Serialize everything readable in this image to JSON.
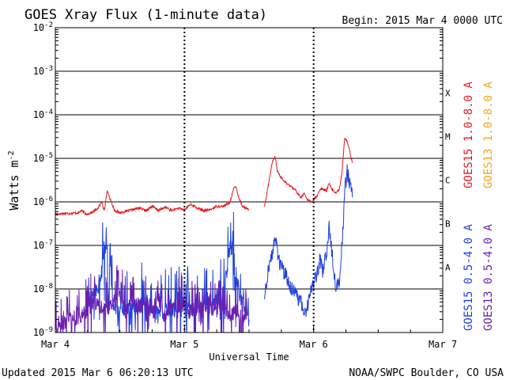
{
  "header": {
    "title": "GOES Xray Flux (1-minute data)",
    "begin": "Begin:  2015 Mar 4 0000 UTC"
  },
  "footer": {
    "updated": "Updated 2015 Mar  6 06:20:13 UTC",
    "credit": "NOAA/SWPC Boulder, CO USA"
  },
  "chart_data": {
    "type": "line",
    "title": "GOES Xray Flux (1-minute data)",
    "xlabel": "Universal Time",
    "ylabel_base": "Watts m",
    "ylabel_sup": "-2",
    "y_scale": "log",
    "ylim": [
      1e-09,
      0.01
    ],
    "xlim": [
      0,
      3
    ],
    "x_unit": "days since 2015 Mar 4 0000 UTC",
    "x_ticks": [
      {
        "value": 0,
        "label": "Mar 4"
      },
      {
        "value": 1,
        "label": "Mar 5"
      },
      {
        "value": 2,
        "label": "Mar 6"
      },
      {
        "value": 3,
        "label": "Mar 7"
      }
    ],
    "y_ticks": [
      {
        "exp": -9,
        "base": "10",
        "sup": "-9"
      },
      {
        "exp": -8,
        "base": "10",
        "sup": "-8"
      },
      {
        "exp": -7,
        "base": "10",
        "sup": "-7"
      },
      {
        "exp": -6,
        "base": "10",
        "sup": "-6"
      },
      {
        "exp": -5,
        "base": "10",
        "sup": "-5"
      },
      {
        "exp": -4,
        "base": "10",
        "sup": "-4"
      },
      {
        "exp": -3,
        "base": "10",
        "sup": "-3"
      },
      {
        "exp": -2,
        "base": "10",
        "sup": "-2"
      }
    ],
    "flare_classes": [
      {
        "label": "A",
        "log_center": -7.5
      },
      {
        "label": "B",
        "log_center": -6.5
      },
      {
        "label": "C",
        "log_center": -5.5
      },
      {
        "label": "M",
        "log_center": -4.5
      },
      {
        "label": "X",
        "log_center": -3.5
      }
    ],
    "gridlines_log": [
      -8,
      -7,
      -6,
      -5,
      -4,
      -3
    ],
    "grid": true,
    "legend_placement": "right",
    "series": [
      {
        "name": "GOES15 1.0-8.0 A",
        "color": "#e41a1c",
        "style": "noisy",
        "noise": 0.03,
        "x": [
          0,
          0.18,
          0.2,
          0.24,
          0.28,
          0.33,
          0.36,
          0.38,
          0.4,
          0.42,
          0.46,
          0.5,
          0.6,
          0.65,
          0.7,
          0.75,
          0.8,
          0.85,
          0.9,
          0.95,
          1.0,
          1.05,
          1.1,
          1.15,
          1.2,
          1.25,
          1.3,
          1.35,
          1.38,
          1.4,
          1.42,
          1.45,
          1.5
        ],
        "log": [
          -6.28,
          -6.25,
          -6.2,
          -6.28,
          -6.25,
          -6.15,
          -6.0,
          -6.2,
          -5.75,
          -5.9,
          -6.2,
          -6.25,
          -6.18,
          -6.14,
          -6.2,
          -6.1,
          -6.2,
          -6.12,
          -6.2,
          -6.15,
          -6.18,
          -6.05,
          -6.15,
          -6.2,
          -6.18,
          -6.1,
          -6.1,
          -6.02,
          -5.7,
          -5.65,
          -5.9,
          -6.1,
          -6.18
        ]
      },
      {
        "name": "GOES15 1.0-8.0 A",
        "color": "#e41a1c",
        "style": "noisy",
        "noise": 0.03,
        "x": [
          1.62,
          1.65,
          1.68,
          1.7,
          1.72,
          1.75,
          1.8,
          1.85,
          1.9,
          1.93,
          1.95,
          1.98,
          2.0,
          2.03,
          2.05,
          2.07,
          2.1,
          2.12,
          2.14,
          2.17,
          2.2,
          2.22,
          2.24,
          2.26,
          2.28,
          2.3
        ],
        "log": [
          -6.1,
          -5.6,
          -5.1,
          -4.95,
          -5.3,
          -5.45,
          -5.6,
          -5.7,
          -5.9,
          -5.8,
          -5.95,
          -6.0,
          -5.95,
          -5.85,
          -5.7,
          -5.7,
          -5.75,
          -5.55,
          -5.7,
          -5.8,
          -5.7,
          -5.3,
          -4.55,
          -4.6,
          -4.85,
          -5.1
        ]
      },
      {
        "name": "GOES15 0.5-4.0 A",
        "color": "#1f3fe0",
        "style": "spiky",
        "noise": 0.35,
        "x": [
          0.25,
          0.3,
          0.35,
          0.38,
          0.4,
          0.42,
          0.45,
          0.5,
          0.6,
          0.7,
          0.8,
          0.9,
          1.0,
          1.1,
          1.2,
          1.3,
          1.32,
          1.35,
          1.38,
          1.4,
          1.42,
          1.44,
          1.46,
          1.48,
          1.5
        ],
        "log": [
          -8.3,
          -8.1,
          -7.8,
          -7.0,
          -7.1,
          -7.6,
          -8.3,
          -8.5,
          -8.4,
          -8.3,
          -8.6,
          -8.4,
          -8.5,
          -8.4,
          -8.3,
          -8.2,
          -7.7,
          -7.0,
          -7.2,
          -7.8,
          -8.0,
          -8.3,
          -8.4,
          -8.6,
          -8.7
        ]
      },
      {
        "name": "GOES15 0.5-4.0 A",
        "color": "#1f3fe0",
        "style": "noisy",
        "noise": 0.18,
        "x": [
          1.62,
          1.65,
          1.68,
          1.7,
          1.72,
          1.75,
          1.8,
          1.85,
          1.9,
          1.93,
          1.95,
          1.98,
          2.0,
          2.03,
          2.05,
          2.07,
          2.1,
          2.12,
          2.14,
          2.17,
          2.2,
          2.22,
          2.24,
          2.26,
          2.28,
          2.3
        ],
        "log": [
          -8.2,
          -7.5,
          -7.2,
          -6.75,
          -7.2,
          -7.5,
          -7.8,
          -8.1,
          -8.3,
          -8.6,
          -8.4,
          -8.0,
          -7.9,
          -7.6,
          -7.3,
          -7.6,
          -7.2,
          -6.6,
          -7.1,
          -7.9,
          -7.8,
          -7.0,
          -5.8,
          -5.3,
          -5.6,
          -5.9
        ]
      },
      {
        "name": "GOES13 1.0-8.0 A",
        "color": "#f5a623",
        "style": "noisy",
        "noise": 0.03,
        "x": [],
        "log": []
      },
      {
        "name": "GOES13 0.5-4.0 A",
        "color": "#6a1fb0",
        "style": "spiky",
        "noise": 0.28,
        "x": [
          0,
          0.05,
          0.1,
          0.15,
          0.2,
          0.25,
          0.3,
          0.35,
          0.4,
          0.45,
          0.5,
          0.55,
          0.6,
          0.65,
          0.7,
          0.75,
          0.8,
          0.85,
          0.9,
          0.95,
          1.0,
          1.05,
          1.1,
          1.15,
          1.2,
          1.25,
          1.3,
          1.35,
          1.4,
          1.45,
          1.48
        ],
        "log": [
          -8.8,
          -8.9,
          -8.7,
          -8.8,
          -8.6,
          -8.5,
          -8.3,
          -8.4,
          -8.5,
          -8.3,
          -8.2,
          -8.5,
          -8.3,
          -8.4,
          -8.3,
          -8.5,
          -8.2,
          -8.6,
          -8.4,
          -8.5,
          -8.3,
          -8.6,
          -8.5,
          -8.4,
          -8.3,
          -8.5,
          -8.4,
          -8.6,
          -8.5,
          -8.6,
          -8.7
        ]
      }
    ]
  }
}
